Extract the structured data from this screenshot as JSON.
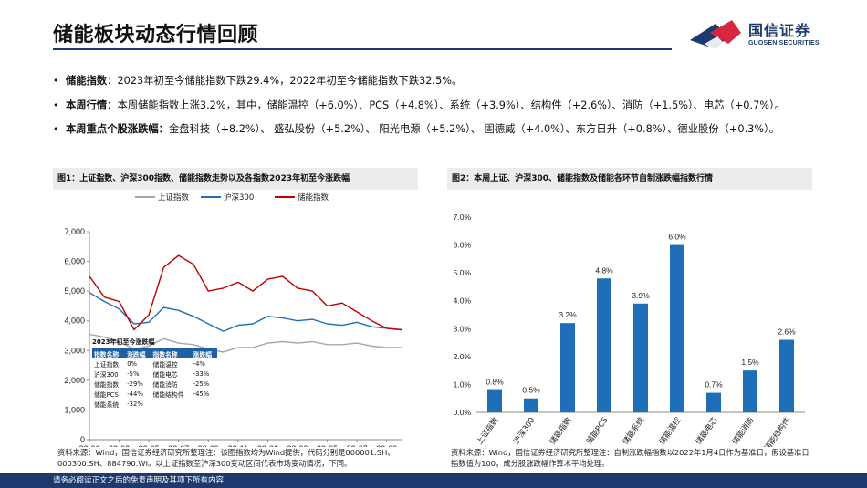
{
  "header": {
    "title": "储能板块动态行情回顾",
    "logo_name": "国信证券",
    "logo_sub": "GUOSEN SECURITIES",
    "accent": "#1c3a6e",
    "logo_red": "#d7263d"
  },
  "bullets": [
    {
      "key": "储能指数：",
      "text": "2023年初至今储能指数下跌29.4%，2022年初至今储能指数下跌32.5%。"
    },
    {
      "key": "本周行情：",
      "text": "本周储能指数上涨3.2%，其中，储能温控（+6.0%）、PCS（+4.8%）、系统（+3.9%）、结构件（+2.6%）、消防（+1.5%）、电芯（+0.7%）。"
    },
    {
      "key": "本周重点个股涨跌幅：",
      "text": "金盘科技（+8.2%）、 盛弘股份（+5.2%）、 阳光电源（+5.2%）、 固德威（+4.0%）、东方日升（+0.8%）、德业股份（+0.3%）。"
    }
  ],
  "chart_data": [
    {
      "type": "line",
      "title": "图1：上证指数、沪深300指数、储能指数走势以及各指数2023年初至今涨跌幅",
      "x": [
        "22-01",
        "22-02",
        "22-03",
        "22-04",
        "22-05",
        "22-06",
        "22-07",
        "22-08",
        "22-09",
        "22-10",
        "22-11",
        "22-12",
        "23-01",
        "23-02",
        "23-03",
        "23-04",
        "23-05",
        "23-06",
        "23-07",
        "23-08",
        "23-09",
        "23-10"
      ],
      "x_ticks": [
        "22-01",
        "22-03",
        "22-05",
        "22-07",
        "22-09",
        "22-11",
        "23-01",
        "23-03",
        "23-05",
        "23-07",
        "23-09"
      ],
      "series": [
        {
          "name": "上证指数",
          "color": "#a6a6a6",
          "values": [
            3550,
            3450,
            3300,
            3050,
            3150,
            3400,
            3250,
            3200,
            3050,
            2950,
            3100,
            3100,
            3250,
            3300,
            3250,
            3300,
            3200,
            3200,
            3250,
            3150,
            3100,
            3100
          ]
        },
        {
          "name": "沪深300",
          "color": "#1f6fb8",
          "values": [
            4950,
            4650,
            4400,
            3900,
            3950,
            4450,
            4350,
            4150,
            3900,
            3650,
            3850,
            3900,
            4150,
            4100,
            4000,
            4050,
            3900,
            3850,
            3950,
            3800,
            3750,
            3700
          ]
        },
        {
          "name": "储能指数",
          "color": "#c00000",
          "values": [
            5500,
            4800,
            4650,
            3700,
            4200,
            5800,
            6200,
            5900,
            5000,
            5100,
            5300,
            5000,
            5400,
            5500,
            5100,
            5000,
            4500,
            4600,
            4300,
            4000,
            3750,
            3700
          ]
        }
      ],
      "ylim": [
        0,
        7000
      ],
      "y_ticks": [
        0,
        1000,
        2000,
        3000,
        4000,
        5000,
        6000,
        7000
      ],
      "y_tick_labels": [
        "0",
        "1,000",
        "2,000",
        "3,000",
        "4,000",
        "5,000",
        "6,000",
        "7,000"
      ],
      "legend": "top",
      "inset": {
        "title": "2023年初至今涨跌幅",
        "headers": [
          "指数名称",
          "涨跌幅",
          "指数名称",
          "涨跌幅"
        ],
        "rows": [
          [
            "上证指数",
            "0%",
            "储能温控",
            "-4%"
          ],
          [
            "沪深300",
            "-5%",
            "储能电芯",
            "-33%"
          ],
          [
            "储能指数",
            "-29%",
            "储能消防",
            "-25%"
          ],
          [
            "储能PCS",
            "-44%",
            "储能结构件",
            "-45%"
          ],
          [
            "储能系统",
            "-32%",
            "",
            ""
          ]
        ]
      }
    },
    {
      "type": "bar",
      "title": "图2：本周上证、沪深300、储能指数及储能各环节自制涨跌幅指数行情",
      "categories": [
        "上证指数",
        "沪深300",
        "储能指数",
        "储能PCS",
        "储能系统",
        "储能温控",
        "储能电芯",
        "储能消防",
        "储能结构件"
      ],
      "values": [
        0.8,
        0.5,
        3.2,
        4.8,
        3.9,
        6.0,
        0.7,
        1.5,
        2.6
      ],
      "data_labels": [
        "0.8%",
        "0.5%",
        "3.2%",
        "4.8%",
        "3.9%",
        "6.0%",
        "0.7%",
        "1.5%",
        "2.6%"
      ],
      "ylim": [
        0,
        7
      ],
      "y_ticks": [
        0,
        1,
        2,
        3,
        4,
        5,
        6,
        7
      ],
      "y_tick_labels": [
        "0.0%",
        "1.0%",
        "2.0%",
        "3.0%",
        "4.0%",
        "5.0%",
        "6.0%",
        "7.0%"
      ],
      "color": "#1f6fb8"
    }
  ],
  "sources": [
    "资料来源：Wind，国信证券经济研究所整理注：该图指数均为Wind提供，代码分别是000001.SH、000300.SH、884790.WI。以上证指数至沪深300变动区间代表市场变动情况，下同。",
    "资料来源：Wind，国信证券经济研究所整理注：自制涨跌幅指数以2022年1月4日作为基准日，假设基准日指数值为100，成分股涨跌幅作算术平均处理。"
  ],
  "footer": "请务必阅读正文之后的免责声明及其项下所有内容"
}
